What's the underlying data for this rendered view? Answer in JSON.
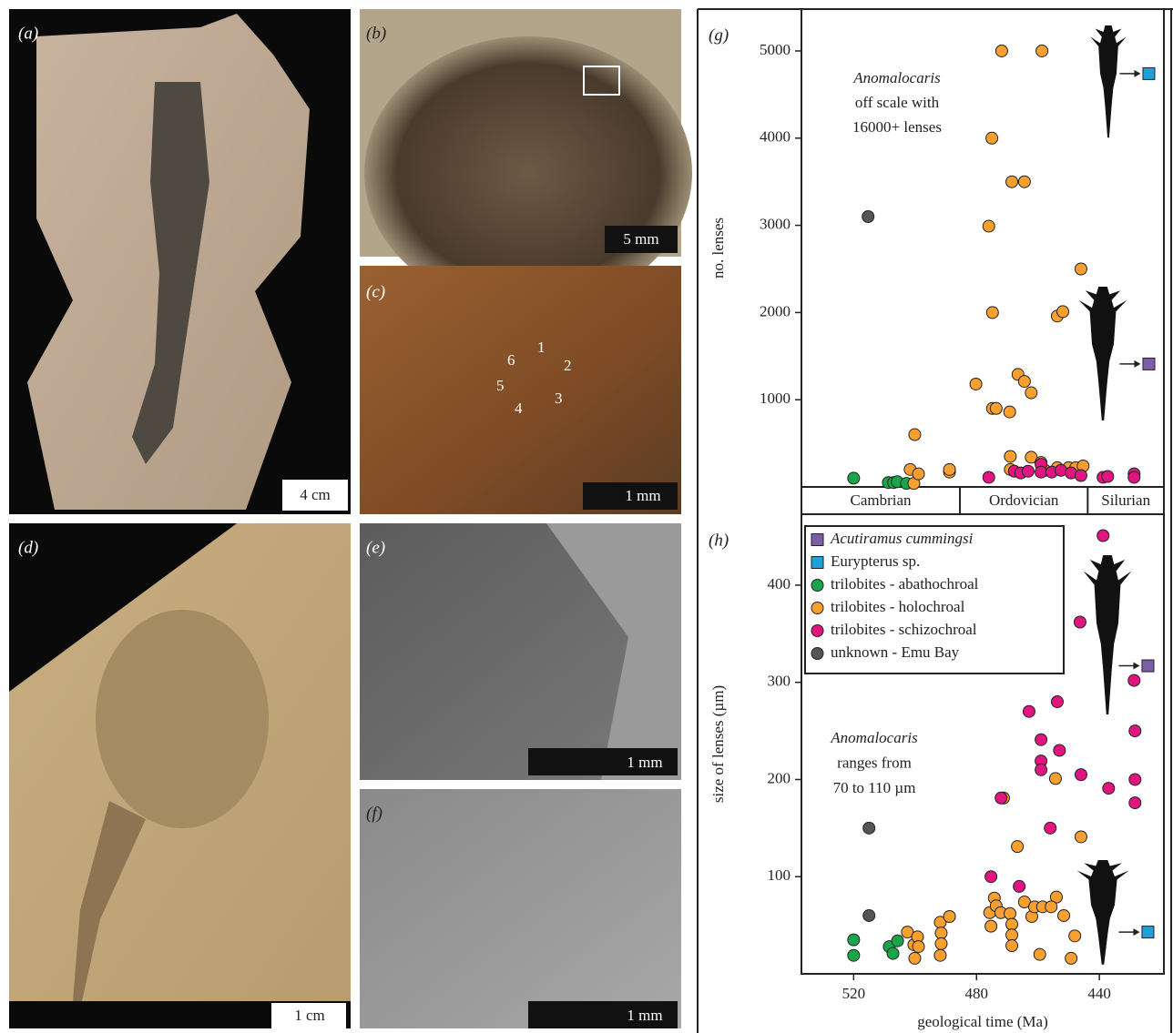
{
  "photos": [
    {
      "label": "(a)",
      "scale": "4 cm"
    },
    {
      "label": "(b)",
      "scale": "5 mm"
    },
    {
      "label": "(c)",
      "scale": "1 mm",
      "markers": [
        "1",
        "2",
        "3",
        "4",
        "5",
        "6"
      ]
    },
    {
      "label": "(d)",
      "scale": "1 cm"
    },
    {
      "label": "(e)",
      "scale": "1 mm"
    },
    {
      "label": "(f)",
      "scale": "1 mm"
    }
  ],
  "chart_data": [
    {
      "type": "scatter",
      "panel_label": "(g)",
      "y_label": "no. lenses",
      "xlim": [
        537,
        419
      ],
      "ylim": [
        0,
        5480
      ],
      "yticks": [
        1000,
        2000,
        3000,
        4000,
        5000
      ],
      "annotation": [
        "Anomalocaris",
        "off scale with",
        "16000+ lenses"
      ],
      "periods": [
        "Cambrian",
        "Ordovician",
        "Silurian"
      ],
      "period_boundaries": [
        485.4,
        443.8
      ],
      "series": [
        {
          "color": "#7b5ea7",
          "marker": "square",
          "x": [
            423.9
          ],
          "values": [
            1410
          ]
        },
        {
          "color": "#1fa0d8",
          "marker": "square",
          "x": [
            423.9
          ],
          "values": [
            4740
          ]
        },
        {
          "color": "#1aa54b",
          "marker": "circle",
          "x": [
            520,
            508.7,
            507,
            505.8,
            502.8
          ],
          "values": [
            100,
            50,
            50,
            60,
            40
          ]
        },
        {
          "color": "#f7a030",
          "marker": "circle",
          "x": [
            500.4,
            501.6,
            498.9,
            500.1,
            488.8,
            488.8,
            480.2,
            471.8,
            458.7,
            475,
            468.5,
            464.4,
            476,
            474.8,
            453.7,
            451.9,
            446,
            466.5,
            464.4,
            462.2,
            474.8,
            473.6,
            469.2,
            469,
            469,
            462.2,
            459,
            457.7,
            453.7,
            450,
            447.7,
            445.3
          ],
          "values": [
            40,
            200,
            150,
            600,
            170,
            200,
            1180,
            5000,
            5000,
            4000,
            3500,
            3500,
            2990,
            2000,
            1960,
            2010,
            2500,
            1290,
            1210,
            1080,
            900,
            900,
            860,
            350,
            200,
            340,
            280,
            190,
            220,
            220,
            220,
            240
          ]
        },
        {
          "color": "#e0157f",
          "marker": "circle",
          "x": [
            476,
            467.7,
            465.6,
            463.2,
            459,
            459,
            455.5,
            452.5,
            449.2,
            446,
            438.8,
            437.3,
            428.7,
            428.7
          ],
          "values": [
            110,
            180,
            160,
            180,
            260,
            170,
            170,
            190,
            160,
            130,
            110,
            120,
            150,
            110
          ]
        },
        {
          "color": "#555555",
          "marker": "circle",
          "x": [
            515.3
          ],
          "values": [
            3100
          ]
        }
      ]
    },
    {
      "type": "scatter",
      "panel_label": "(h)",
      "y_label": "size of lenses (µm)",
      "x_label": "geological time (Ma)",
      "xlim": [
        537,
        419
      ],
      "ylim": [
        0,
        473
      ],
      "yticks": [
        100,
        200,
        300,
        400
      ],
      "xticks": [
        520,
        480,
        440
      ],
      "annotation": [
        "Anomalocaris",
        "ranges from",
        "70 to 110 µm"
      ],
      "legend": true,
      "series": [
        {
          "name": "Acutiramus cummingsi",
          "italic": true,
          "color": "#7b5ea7",
          "marker": "square",
          "x": [
            424.2
          ],
          "values": [
            317
          ]
        },
        {
          "name": "Eurypterus sp.",
          "color": "#1fa0d8",
          "marker": "square",
          "x": [
            424.2
          ],
          "values": [
            43
          ]
        },
        {
          "name": "trilobites - abathochroal",
          "color": "#1aa54b",
          "marker": "circle",
          "x": [
            520,
            520,
            508.4,
            507.2,
            505.7
          ],
          "values": [
            35,
            19,
            28,
            21,
            34
          ]
        },
        {
          "name": "trilobites - holochroal",
          "color": "#f7a030",
          "marker": "circle",
          "x": [
            502.5,
            500.4,
            500.1,
            499.2,
            498.9,
            491.8,
            491.5,
            491.5,
            491.8,
            488.8,
            475.7,
            475.3,
            474.2,
            473.6,
            472.1,
            469.1,
            468.5,
            468.5,
            468.5,
            466.7,
            471.2,
            464.4,
            462,
            461.1,
            458.5,
            459.4,
            454.3,
            454,
            451.6,
            455.7,
            449.2,
            448,
            446
          ],
          "values": [
            43,
            30,
            16,
            38,
            28,
            53,
            42,
            31,
            19,
            59,
            63,
            49,
            78,
            70,
            63,
            62,
            51,
            40,
            29,
            131,
            181,
            74,
            59,
            69,
            69,
            20,
            201,
            79,
            60,
            69,
            16,
            39,
            141
          ]
        },
        {
          "name": "trilobites - schizochroal",
          "color": "#e0157f",
          "marker": "circle",
          "x": [
            475.3,
            466.1,
            472,
            462.9,
            459,
            459,
            459,
            456,
            453,
            453.7,
            446,
            446.3,
            438.8,
            437,
            428.7,
            428.4,
            428.4,
            428.4
          ],
          "values": [
            100,
            90,
            181,
            270,
            241,
            219,
            210,
            150,
            230,
            280,
            205,
            362,
            451,
            191,
            302,
            250,
            200,
            176
          ]
        },
        {
          "name": "unknown - Emu Bay",
          "color": "#555555",
          "marker": "circle",
          "x": [
            515,
            515
          ],
          "values": [
            150,
            60
          ]
        }
      ]
    }
  ]
}
